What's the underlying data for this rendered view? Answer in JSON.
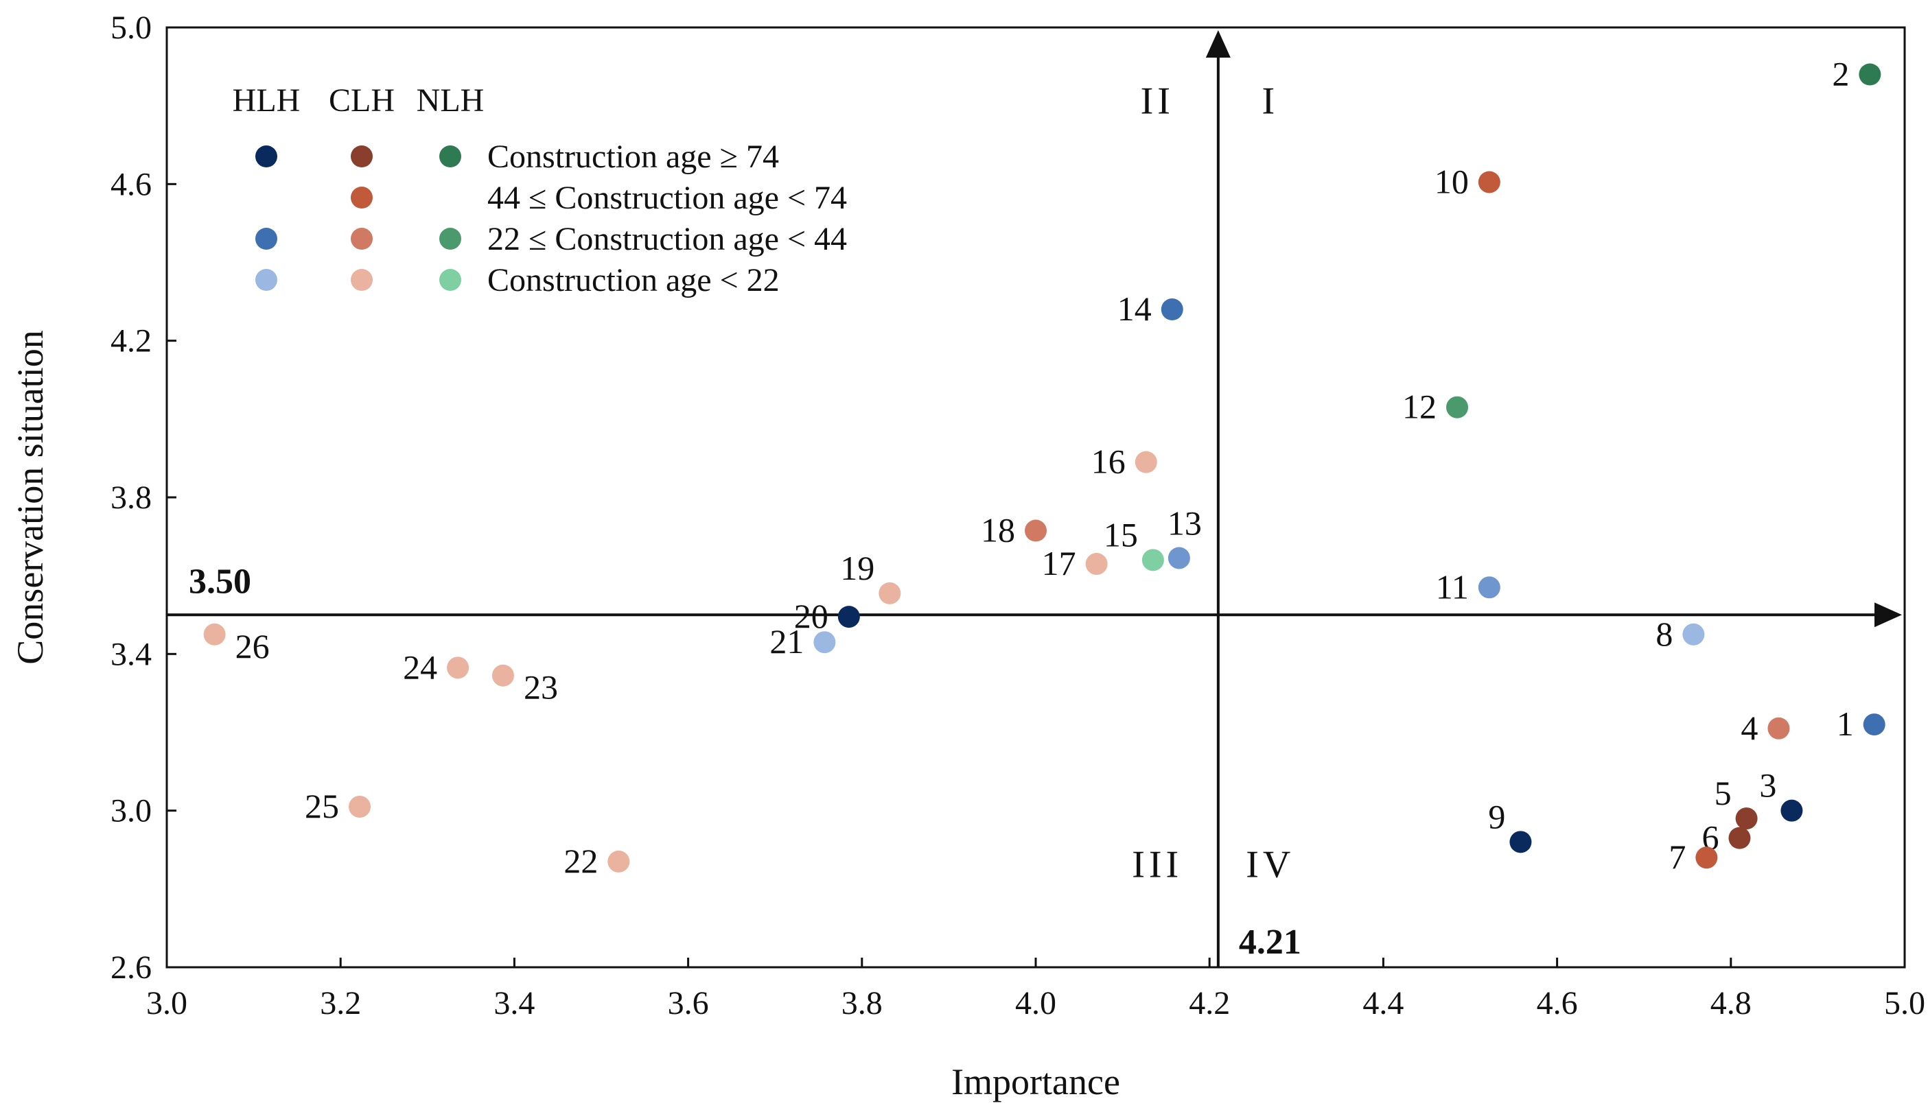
{
  "chart_data": {
    "type": "scatter",
    "xlabel": "Importance",
    "ylabel": "Conservation situation",
    "xlim": [
      3.0,
      5.0
    ],
    "ylim": [
      2.6,
      5.0
    ],
    "xticks": [
      "3.0",
      "3.2",
      "3.4",
      "3.6",
      "3.8",
      "4.0",
      "4.2",
      "4.4",
      "4.6",
      "4.8",
      "5.0"
    ],
    "yticks": [
      "2.6",
      "3.0",
      "3.4",
      "3.8",
      "4.2",
      "4.6",
      "5.0"
    ],
    "threshold_x": 4.21,
    "threshold_x_label": "4.21",
    "threshold_y": 3.5,
    "threshold_y_label": "3.50",
    "quadrants": [
      {
        "label": "I",
        "x": 4.27,
        "y": 4.78
      },
      {
        "label": "II",
        "x": 4.14,
        "y": 4.78
      },
      {
        "label": "III",
        "x": 4.14,
        "y": 2.83
      },
      {
        "label": "IV",
        "x": 4.27,
        "y": 2.83
      }
    ],
    "legend": {
      "headers": [
        "HLH",
        "CLH",
        "NLH"
      ],
      "rows": [
        {
          "label": "Construction age ≥ 74",
          "colors": [
            "#0a2a5e",
            "#8a3f2c",
            "#2e7a52"
          ]
        },
        {
          "label": "44 ≤ Construction age < 74",
          "colors": [
            null,
            "#c05a3a",
            null
          ]
        },
        {
          "label": "22 ≤ Construction age < 44",
          "colors": [
            "#3e6fb0",
            "#d07a63",
            "#4a9a6e"
          ]
        },
        {
          "label": "Construction age < 22",
          "colors": [
            "#9bb8e2",
            "#eab3a0",
            "#7ecfa2"
          ]
        }
      ]
    },
    "points": [
      {
        "id": "1",
        "x": 4.965,
        "y": 3.22,
        "color": "#3e6fb0",
        "label_side": "left"
      },
      {
        "id": "2",
        "x": 4.96,
        "y": 4.88,
        "color": "#2e7a52",
        "label_side": "left"
      },
      {
        "id": "3",
        "x": 4.87,
        "y": 3.0,
        "color": "#0a2a5e",
        "label_side": "above-left"
      },
      {
        "id": "4",
        "x": 4.855,
        "y": 3.21,
        "color": "#d07a63",
        "label_side": "left"
      },
      {
        "id": "5",
        "x": 4.818,
        "y": 2.98,
        "color": "#8a3f2c",
        "label_side": "above-left"
      },
      {
        "id": "6",
        "x": 4.81,
        "y": 2.93,
        "color": "#8a3f2c",
        "label_side": "left"
      },
      {
        "id": "7",
        "x": 4.772,
        "y": 2.88,
        "color": "#c05a3a",
        "label_side": "left"
      },
      {
        "id": "8",
        "x": 4.757,
        "y": 3.45,
        "color": "#9bb8e2",
        "label_side": "left"
      },
      {
        "id": "9",
        "x": 4.558,
        "y": 2.92,
        "color": "#0a2a5e",
        "label_side": "above-left"
      },
      {
        "id": "10",
        "x": 4.522,
        "y": 4.605,
        "color": "#c05a3a",
        "label_side": "left"
      },
      {
        "id": "11",
        "x": 4.522,
        "y": 3.57,
        "color": "#6f96cf",
        "label_side": "left"
      },
      {
        "id": "12",
        "x": 4.485,
        "y": 4.03,
        "color": "#4a9a6e",
        "label_side": "left"
      },
      {
        "id": "13",
        "x": 4.165,
        "y": 3.645,
        "color": "#6f96cf",
        "label_side": "above"
      },
      {
        "id": "14",
        "x": 4.157,
        "y": 4.28,
        "color": "#3e6fb0",
        "label_side": "left"
      },
      {
        "id": "15",
        "x": 4.135,
        "y": 3.64,
        "color": "#7ecfa2",
        "label_side": "above-left"
      },
      {
        "id": "16",
        "x": 4.127,
        "y": 3.89,
        "color": "#eab3a0",
        "label_side": "left"
      },
      {
        "id": "17",
        "x": 4.07,
        "y": 3.63,
        "color": "#eab3a0",
        "label_side": "left"
      },
      {
        "id": "18",
        "x": 4.0,
        "y": 3.715,
        "color": "#d07a63",
        "label_side": "left"
      },
      {
        "id": "19",
        "x": 3.832,
        "y": 3.555,
        "color": "#eab3a0",
        "label_side": "above-left"
      },
      {
        "id": "20",
        "x": 3.785,
        "y": 3.495,
        "color": "#0a2a5e",
        "label_side": "left"
      },
      {
        "id": "21",
        "x": 3.757,
        "y": 3.43,
        "color": "#9bb8e2",
        "label_side": "left"
      },
      {
        "id": "22",
        "x": 3.52,
        "y": 2.87,
        "color": "#eab3a0",
        "label_side": "left"
      },
      {
        "id": "23",
        "x": 3.387,
        "y": 3.345,
        "color": "#eab3a0",
        "label_side": "right"
      },
      {
        "id": "24",
        "x": 3.335,
        "y": 3.365,
        "color": "#eab3a0",
        "label_side": "left"
      },
      {
        "id": "25",
        "x": 3.222,
        "y": 3.01,
        "color": "#eab3a0",
        "label_side": "left"
      },
      {
        "id": "26",
        "x": 3.055,
        "y": 3.45,
        "color": "#eab3a0",
        "label_side": "right"
      }
    ]
  }
}
